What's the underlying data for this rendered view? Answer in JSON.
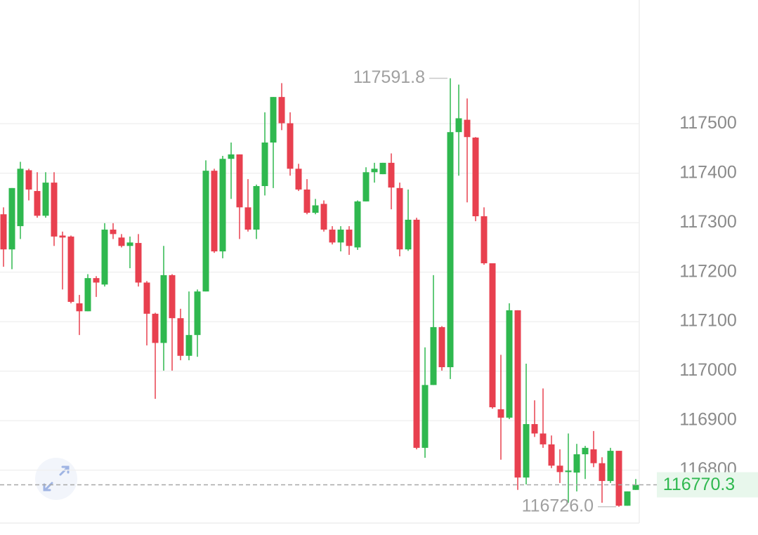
{
  "chart_data": {
    "type": "candlestick",
    "open": [
      117317,
      117246,
      117293,
      117406,
      117364,
      117314,
      117381,
      117274,
      117272,
      117137,
      117121,
      117188,
      117175,
      117286,
      117270,
      117253,
      117259,
      117179,
      117116,
      117057,
      117194,
      117107,
      117031,
      117073,
      117161,
      117405,
      117242,
      117429,
      117438,
      117331,
      117286,
      117374,
      117462,
      117554,
      117501,
      117409,
      117367,
      117320,
      117338,
      117286,
      117260,
      117286,
      117250,
      117343,
      117402,
      117398,
      117421,
      117370,
      117246,
      117306,
      116845,
      116972,
      117089,
      117008,
      117483,
      117508,
      117472,
      117313,
      117218,
      116923,
      116906,
      117123,
      116785,
      116893,
      116874,
      116852,
      116809,
      116796,
      116795,
      116832,
      116842,
      116814,
      116778,
      116839,
      116728,
      116760
    ],
    "high": [
      117331,
      117370,
      117423,
      117409,
      117402,
      117402,
      117402,
      117282,
      117274,
      117154,
      117196,
      117192,
      117299,
      117299,
      117277,
      117272,
      117277,
      117182,
      117118,
      117253,
      117196,
      117126,
      117161,
      117165,
      117426,
      117409,
      117435,
      117462,
      117438,
      117388,
      117377,
      117523,
      117554,
      117582,
      117523,
      117419,
      117388,
      117348,
      117345,
      117293,
      117293,
      117293,
      117345,
      117412,
      117421,
      117421,
      117440,
      117381,
      117367,
      117310,
      117048,
      117194,
      117091,
      117591.8,
      117579,
      117551,
      117473,
      117331,
      117218,
      117033,
      117137,
      117123,
      117015,
      116941,
      116965,
      116870,
      116842,
      116874,
      116853,
      116849,
      116879,
      116826,
      116845,
      116839,
      116757,
      116782
    ],
    "low": [
      117211,
      117206,
      117267,
      117345,
      117310,
      117310,
      117253,
      117165,
      117137,
      117073,
      117121,
      117150,
      117171,
      117267,
      117250,
      117208,
      117171,
      117052,
      116944,
      117001,
      117001,
      117022,
      117022,
      117029,
      117161,
      117239,
      117228,
      117348,
      117267,
      117282,
      117267,
      117355,
      117370,
      117487,
      117395,
      117364,
      117317,
      117317,
      117282,
      117256,
      117242,
      117235,
      117245,
      117343,
      117381,
      117398,
      117327,
      117232,
      117243,
      116842,
      116825,
      116972,
      117001,
      116984,
      117395,
      117341,
      117303,
      117215,
      116924,
      116821,
      116903,
      116760,
      116771,
      116867,
      116845,
      116804,
      116774,
      116734,
      116757,
      116782,
      116806,
      116734,
      116774,
      116726.0,
      116728,
      116760
    ],
    "close": [
      117246,
      117370,
      117409,
      117367,
      117314,
      117381,
      117272,
      117270,
      117140,
      117121,
      117188,
      117179,
      117286,
      117277,
      117253,
      117260,
      117179,
      117116,
      117057,
      117194,
      117107,
      117031,
      117073,
      117161,
      117405,
      117242,
      117429,
      117438,
      117331,
      117286,
      117374,
      117462,
      117554,
      117501,
      117409,
      117367,
      117320,
      117335,
      117286,
      117260,
      117286,
      117253,
      117343,
      117402,
      117409,
      117421,
      117371,
      117246,
      117306,
      116845,
      116972,
      117089,
      117008,
      117483,
      117511,
      117473,
      117313,
      117218,
      116927,
      116906,
      117123,
      116785,
      116893,
      116874,
      116852,
      116809,
      116796,
      116799,
      116832,
      116845,
      116814,
      116778,
      116839,
      116728,
      116757,
      116770.3
    ],
    "up_color": "#2fb84f",
    "down_color": "#e8404f",
    "ylim": [
      116693,
      117750
    ],
    "yticks": [
      116800,
      116900,
      117000,
      117100,
      117200,
      117300,
      117400,
      117500
    ],
    "grid": true,
    "annotations": [
      {
        "value": 117591.8,
        "label": "117591.8"
      },
      {
        "value": 116726.0,
        "label": "116726.0"
      }
    ],
    "last_price": {
      "value": 116770.3,
      "label": "116770.3"
    }
  }
}
